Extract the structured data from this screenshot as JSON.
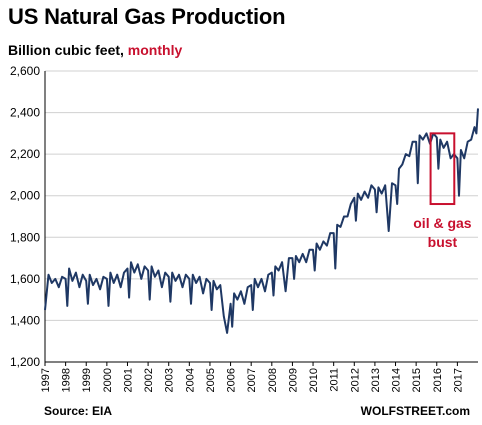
{
  "title": "US Natural Gas Production",
  "subtitle_main": "Billion cubic feet, ",
  "subtitle_highlight": "monthly",
  "source": "Source: EIA",
  "brand": "WOLFSTREET.com",
  "colors": {
    "line": "#1f3864",
    "accent": "#c8102e",
    "grid": "#d0d0d0"
  },
  "chart_data": {
    "type": "line",
    "xlabel": "",
    "ylabel": "",
    "ylim": [
      1200,
      2600
    ],
    "yticks": [
      1200,
      1400,
      1600,
      1800,
      2000,
      2200,
      2400,
      2600
    ],
    "ytick_labels": [
      "1,200",
      "1,400",
      "1,600",
      "1,800",
      "2,000",
      "2,200",
      "2,400",
      "2,600"
    ],
    "xlim": [
      1997,
      2018
    ],
    "xtick_labels": [
      "1997",
      "1998",
      "1999",
      "2000",
      "2001",
      "2002",
      "2003",
      "2004",
      "2005",
      "2006",
      "2007",
      "2008",
      "2009",
      "2010",
      "2011",
      "2012",
      "2013",
      "2014",
      "2015",
      "2016",
      "2017"
    ],
    "grid": "horizontal",
    "annotations": [
      {
        "lines": [
          "oil & gas",
          "bust"
        ],
        "box_x": [
          2015.7,
          2016.85
        ],
        "box_y": [
          1960,
          2300
        ]
      }
    ],
    "series": [
      {
        "points": [
          [
            1997.0,
            1450
          ],
          [
            1997.17,
            1620
          ],
          [
            1997.33,
            1580
          ],
          [
            1997.5,
            1600
          ],
          [
            1997.67,
            1560
          ],
          [
            1997.83,
            1610
          ],
          [
            1998.0,
            1600
          ],
          [
            1998.08,
            1470
          ],
          [
            1998.17,
            1650
          ],
          [
            1998.33,
            1590
          ],
          [
            1998.5,
            1630
          ],
          [
            1998.67,
            1560
          ],
          [
            1998.83,
            1620
          ],
          [
            1999.0,
            1590
          ],
          [
            1999.08,
            1480
          ],
          [
            1999.17,
            1620
          ],
          [
            1999.33,
            1570
          ],
          [
            1999.5,
            1600
          ],
          [
            1999.67,
            1550
          ],
          [
            1999.83,
            1610
          ],
          [
            2000.0,
            1600
          ],
          [
            2000.08,
            1470
          ],
          [
            2000.17,
            1630
          ],
          [
            2000.33,
            1580
          ],
          [
            2000.5,
            1620
          ],
          [
            2000.67,
            1560
          ],
          [
            2000.83,
            1630
          ],
          [
            2001.0,
            1650
          ],
          [
            2001.08,
            1510
          ],
          [
            2001.17,
            1680
          ],
          [
            2001.33,
            1630
          ],
          [
            2001.5,
            1670
          ],
          [
            2001.67,
            1600
          ],
          [
            2001.83,
            1660
          ],
          [
            2002.0,
            1640
          ],
          [
            2002.08,
            1500
          ],
          [
            2002.17,
            1660
          ],
          [
            2002.33,
            1610
          ],
          [
            2002.5,
            1640
          ],
          [
            2002.67,
            1560
          ],
          [
            2002.83,
            1630
          ],
          [
            2003.0,
            1610
          ],
          [
            2003.08,
            1490
          ],
          [
            2003.17,
            1630
          ],
          [
            2003.33,
            1590
          ],
          [
            2003.5,
            1620
          ],
          [
            2003.67,
            1560
          ],
          [
            2003.83,
            1620
          ],
          [
            2004.0,
            1600
          ],
          [
            2004.08,
            1480
          ],
          [
            2004.17,
            1620
          ],
          [
            2004.33,
            1580
          ],
          [
            2004.5,
            1610
          ],
          [
            2004.67,
            1530
          ],
          [
            2004.83,
            1600
          ],
          [
            2005.0,
            1580
          ],
          [
            2005.08,
            1450
          ],
          [
            2005.17,
            1590
          ],
          [
            2005.33,
            1550
          ],
          [
            2005.5,
            1570
          ],
          [
            2005.67,
            1420
          ],
          [
            2005.83,
            1340
          ],
          [
            2006.0,
            1480
          ],
          [
            2006.08,
            1370
          ],
          [
            2006.17,
            1530
          ],
          [
            2006.33,
            1500
          ],
          [
            2006.5,
            1540
          ],
          [
            2006.67,
            1480
          ],
          [
            2006.83,
            1560
          ],
          [
            2007.0,
            1570
          ],
          [
            2007.08,
            1450
          ],
          [
            2007.17,
            1600
          ],
          [
            2007.33,
            1560
          ],
          [
            2007.5,
            1600
          ],
          [
            2007.67,
            1540
          ],
          [
            2007.83,
            1620
          ],
          [
            2008.0,
            1630
          ],
          [
            2008.08,
            1520
          ],
          [
            2008.17,
            1660
          ],
          [
            2008.33,
            1640
          ],
          [
            2008.5,
            1680
          ],
          [
            2008.67,
            1540
          ],
          [
            2008.83,
            1700
          ],
          [
            2009.0,
            1700
          ],
          [
            2009.08,
            1600
          ],
          [
            2009.17,
            1710
          ],
          [
            2009.33,
            1680
          ],
          [
            2009.5,
            1720
          ],
          [
            2009.67,
            1680
          ],
          [
            2009.83,
            1740
          ],
          [
            2010.0,
            1740
          ],
          [
            2010.08,
            1640
          ],
          [
            2010.17,
            1770
          ],
          [
            2010.33,
            1740
          ],
          [
            2010.5,
            1780
          ],
          [
            2010.67,
            1760
          ],
          [
            2010.83,
            1820
          ],
          [
            2011.0,
            1820
          ],
          [
            2011.08,
            1650
          ],
          [
            2011.17,
            1860
          ],
          [
            2011.33,
            1850
          ],
          [
            2011.5,
            1900
          ],
          [
            2011.67,
            1900
          ],
          [
            2011.83,
            1960
          ],
          [
            2012.0,
            1990
          ],
          [
            2012.08,
            1880
          ],
          [
            2012.17,
            2010
          ],
          [
            2012.33,
            1980
          ],
          [
            2012.5,
            2020
          ],
          [
            2012.67,
            1990
          ],
          [
            2012.83,
            2050
          ],
          [
            2013.0,
            2030
          ],
          [
            2013.08,
            1920
          ],
          [
            2013.17,
            2040
          ],
          [
            2013.33,
            2010
          ],
          [
            2013.5,
            2050
          ],
          [
            2013.67,
            1830
          ],
          [
            2013.83,
            2060
          ],
          [
            2014.0,
            2050
          ],
          [
            2014.08,
            1960
          ],
          [
            2014.17,
            2130
          ],
          [
            2014.33,
            2150
          ],
          [
            2014.5,
            2200
          ],
          [
            2014.67,
            2190
          ],
          [
            2014.83,
            2260
          ],
          [
            2015.0,
            2260
          ],
          [
            2015.08,
            2060
          ],
          [
            2015.17,
            2290
          ],
          [
            2015.33,
            2270
          ],
          [
            2015.5,
            2300
          ],
          [
            2015.67,
            2250
          ],
          [
            2015.83,
            2300
          ],
          [
            2016.0,
            2280
          ],
          [
            2016.08,
            2130
          ],
          [
            2016.17,
            2270
          ],
          [
            2016.33,
            2230
          ],
          [
            2016.5,
            2260
          ],
          [
            2016.67,
            2180
          ],
          [
            2016.83,
            2200
          ],
          [
            2017.0,
            2180
          ],
          [
            2017.08,
            2000
          ],
          [
            2017.17,
            2220
          ],
          [
            2017.33,
            2180
          ],
          [
            2017.5,
            2260
          ],
          [
            2017.67,
            2270
          ],
          [
            2017.83,
            2330
          ],
          [
            2017.92,
            2300
          ],
          [
            2018.0,
            2420
          ]
        ]
      }
    ]
  }
}
